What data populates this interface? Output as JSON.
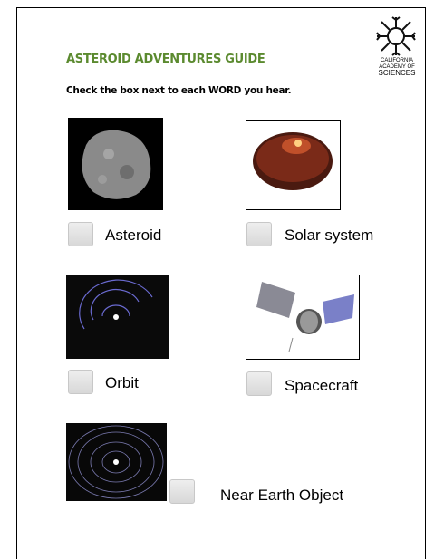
{
  "header": {
    "title": "ASTEROID ADVENTURES GUIDE",
    "logo": [
      "CALIFORNIA",
      "ACADEMY OF",
      "SCIENCES"
    ]
  },
  "instruction": "Check the box next to each WORD you hear.",
  "items": [
    {
      "label": "Asteroid"
    },
    {
      "label": "Solar system"
    },
    {
      "label": "Orbit"
    },
    {
      "label": "Spacecraft"
    },
    {
      "label": "Near Earth Object"
    }
  ]
}
